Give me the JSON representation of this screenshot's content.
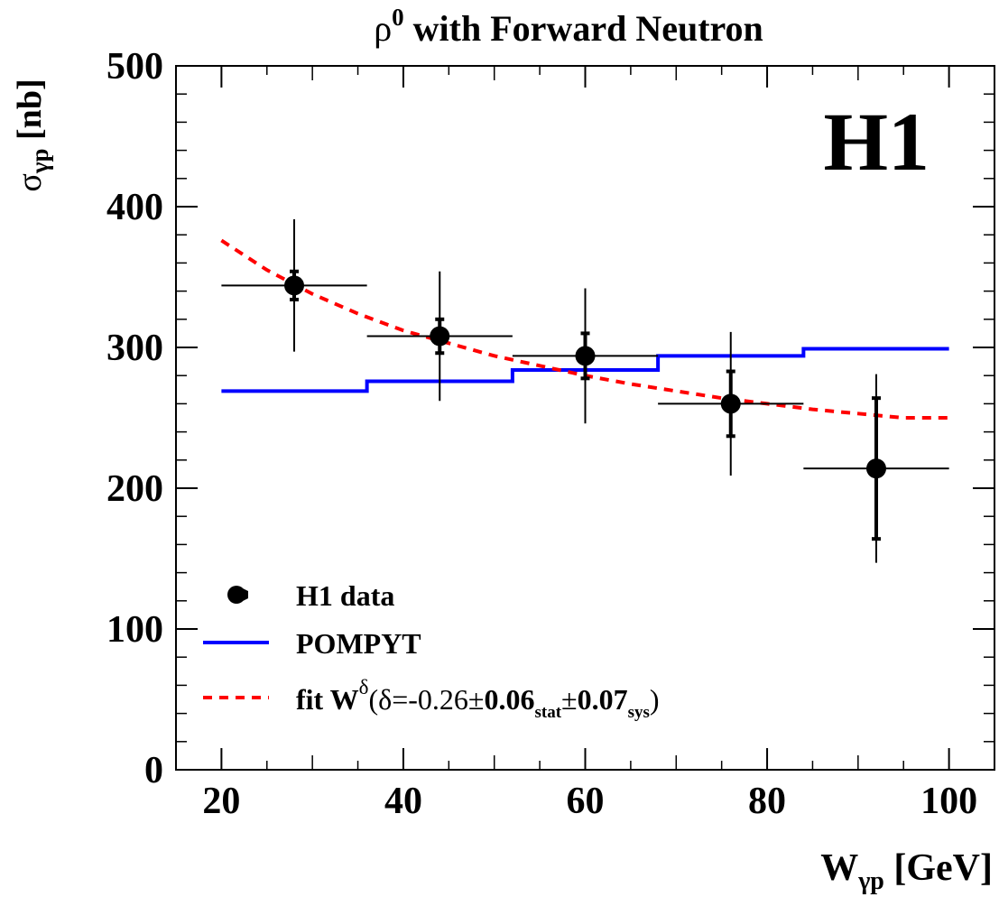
{
  "chart_data": {
    "type": "scatter",
    "title": {
      "base": "ρ",
      "sup": "0",
      "rest": " with Forward Neutron"
    },
    "xlabel": {
      "base": "W",
      "sub": "γp",
      "rest": " [GeV]"
    },
    "ylabel": {
      "base": "σ",
      "sub": "γp",
      "rest": " [nb]"
    },
    "xlim": [
      15,
      105
    ],
    "ylim": [
      0,
      500
    ],
    "xticks": [
      "20",
      "40",
      "60",
      "80",
      "100"
    ],
    "yticks": [
      "0",
      "100",
      "200",
      "300",
      "400",
      "500"
    ],
    "grid": false,
    "experiment_label": "H1",
    "legend_position": "bottom-left",
    "legend": {
      "data": "H1 data",
      "model": "POMPYT",
      "fit": {
        "prefix": "fit W",
        "sup": "δ",
        "open": "(δ=-0.26",
        "pm": "±",
        "v1": "0.06",
        "s1": "stat",
        "v2": "0.07",
        "s2": "sys",
        "close": ")"
      }
    },
    "colors": {
      "data": "#000000",
      "model": "#0000ff",
      "fit": "#ff0000"
    },
    "series": [
      {
        "name": "H1 data",
        "kind": "points",
        "x": [
          28,
          44,
          60,
          76,
          92
        ],
        "xerr": [
          8,
          8,
          8,
          8,
          8
        ],
        "y": [
          344,
          308,
          294,
          260,
          214
        ],
        "stat_err": [
          10,
          12,
          16,
          23,
          50
        ],
        "total_err": [
          47,
          46,
          48,
          51,
          67
        ]
      },
      {
        "name": "POMPYT",
        "kind": "step",
        "edges": [
          20,
          36,
          52,
          68,
          84,
          100
        ],
        "values": [
          269,
          276,
          284,
          294,
          299
        ]
      },
      {
        "name": "fit W^δ",
        "kind": "curve",
        "x": [
          20,
          25,
          30,
          35,
          40,
          45,
          50,
          55,
          60,
          65,
          70,
          75,
          80,
          85,
          90,
          95,
          100
        ],
        "y": [
          376,
          355,
          338,
          324,
          312,
          303,
          294,
          287,
          280,
          274,
          269,
          264,
          260,
          256,
          253,
          250,
          250
        ]
      }
    ]
  }
}
